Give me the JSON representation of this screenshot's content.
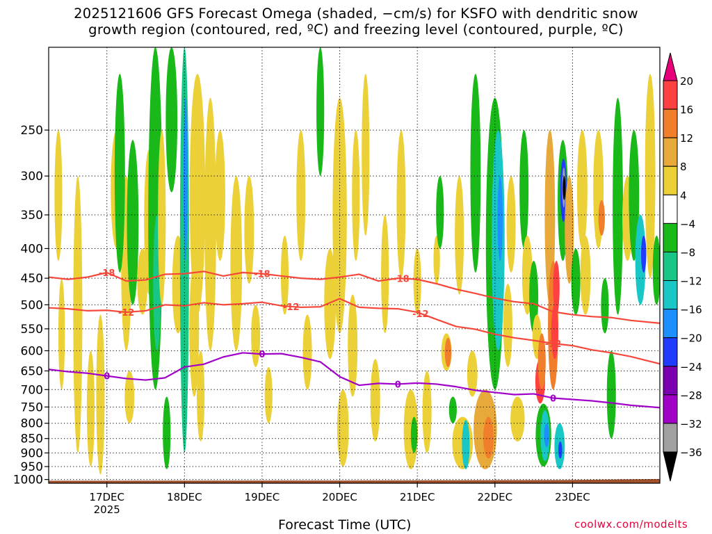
{
  "chart_data": {
    "type": "heatmap",
    "title_line1": "2025121606 GFS Forecast Omega (shaded, −cm/s) for KSFO with dendritic snow",
    "title_line2": "growth region (contoured, red, ºC) and freezing level (contoured, purple, ºC)",
    "xlabel": "Forecast Time (UTC)",
    "ylabel": "",
    "credit": "coolwx.com/modelts",
    "x_range_hours": [
      0,
      189
    ],
    "y_axis": {
      "type": "pressure_hPa",
      "range": [
        1015,
        180
      ],
      "ticks": [
        250,
        300,
        350,
        400,
        450,
        500,
        550,
        600,
        650,
        700,
        750,
        800,
        850,
        900,
        950,
        1000
      ]
    },
    "x_ticks": [
      {
        "hour": 18,
        "label": "17DEC",
        "sublabel": "2025"
      },
      {
        "hour": 42,
        "label": "18DEC"
      },
      {
        "hour": 66,
        "label": "19DEC"
      },
      {
        "hour": 90,
        "label": "20DEC"
      },
      {
        "hour": 114,
        "label": "21DEC"
      },
      {
        "hour": 138,
        "label": "22DEC"
      },
      {
        "hour": 162,
        "label": "23DEC"
      }
    ],
    "colorbar": {
      "levels": [
        20,
        16,
        12,
        8,
        4,
        -4,
        -8,
        -12,
        -16,
        -20,
        -24,
        -28,
        -32,
        -36
      ],
      "colors": [
        "#e8007a",
        "#ff4040",
        "#f07e2a",
        "#e6a93a",
        "#ecd038",
        "#ffffff",
        "#1ab91a",
        "#18c686",
        "#19c7c7",
        "#1e8fff",
        "#1f3cff",
        "#7a00b0",
        "#a000c8",
        "#a0a0a0",
        "#000000"
      ]
    },
    "contours": [
      {
        "name": "dendritic-minus-18",
        "color": "#f5473a",
        "label": "-18",
        "points": [
          [
            0,
            448
          ],
          [
            6,
            452
          ],
          [
            12,
            448
          ],
          [
            18,
            440
          ],
          [
            24,
            455
          ],
          [
            30,
            453
          ],
          [
            36,
            443
          ],
          [
            42,
            442
          ],
          [
            48,
            438
          ],
          [
            54,
            446
          ],
          [
            60,
            440
          ],
          [
            66,
            442
          ],
          [
            72,
            446
          ],
          [
            78,
            450
          ],
          [
            84,
            452
          ],
          [
            90,
            448
          ],
          [
            96,
            443
          ],
          [
            102,
            455
          ],
          [
            108,
            450
          ],
          [
            114,
            452
          ],
          [
            120,
            460
          ],
          [
            126,
            470
          ],
          [
            132,
            478
          ],
          [
            138,
            487
          ],
          [
            144,
            494
          ],
          [
            150,
            498
          ],
          [
            156,
            514
          ],
          [
            162,
            520
          ],
          [
            168,
            524
          ],
          [
            174,
            526
          ],
          [
            180,
            532
          ],
          [
            189,
            538
          ]
        ],
        "label_hours": [
          18,
          66,
          109
        ]
      },
      {
        "name": "dendritic-minus-12",
        "color": "#f5473a",
        "label": "-12",
        "points": [
          [
            0,
            506
          ],
          [
            6,
            508
          ],
          [
            12,
            512
          ],
          [
            18,
            511
          ],
          [
            24,
            515
          ],
          [
            30,
            512
          ],
          [
            36,
            500
          ],
          [
            42,
            502
          ],
          [
            48,
            496
          ],
          [
            54,
            500
          ],
          [
            60,
            498
          ],
          [
            66,
            495
          ],
          [
            72,
            502
          ],
          [
            78,
            505
          ],
          [
            84,
            504
          ],
          [
            90,
            488
          ],
          [
            96,
            505
          ],
          [
            102,
            507
          ],
          [
            108,
            508
          ],
          [
            114,
            515
          ],
          [
            120,
            530
          ],
          [
            126,
            545
          ],
          [
            132,
            551
          ],
          [
            138,
            562
          ],
          [
            144,
            570
          ],
          [
            150,
            576
          ],
          [
            156,
            583
          ],
          [
            162,
            588
          ],
          [
            168,
            598
          ],
          [
            174,
            605
          ],
          [
            180,
            614
          ],
          [
            189,
            632
          ]
        ],
        "label_hours": [
          24,
          75,
          115,
          156
        ]
      },
      {
        "name": "freezing-level-0",
        "color": "#a000c8",
        "label": "0",
        "points": [
          [
            0,
            646
          ],
          [
            6,
            652
          ],
          [
            12,
            656
          ],
          [
            18,
            663
          ],
          [
            24,
            670
          ],
          [
            30,
            674
          ],
          [
            36,
            668
          ],
          [
            42,
            640
          ],
          [
            48,
            633
          ],
          [
            54,
            615
          ],
          [
            60,
            605
          ],
          [
            66,
            608
          ],
          [
            72,
            607
          ],
          [
            78,
            616
          ],
          [
            84,
            627
          ],
          [
            90,
            665
          ],
          [
            96,
            688
          ],
          [
            102,
            683
          ],
          [
            108,
            685
          ],
          [
            114,
            682
          ],
          [
            120,
            685
          ],
          [
            126,
            692
          ],
          [
            132,
            702
          ],
          [
            138,
            708
          ],
          [
            144,
            714
          ],
          [
            150,
            712
          ],
          [
            156,
            724
          ],
          [
            162,
            728
          ],
          [
            168,
            732
          ],
          [
            174,
            738
          ],
          [
            180,
            745
          ],
          [
            189,
            752
          ]
        ],
        "label_hours": [
          18,
          66,
          108,
          156
        ]
      }
    ]
  }
}
